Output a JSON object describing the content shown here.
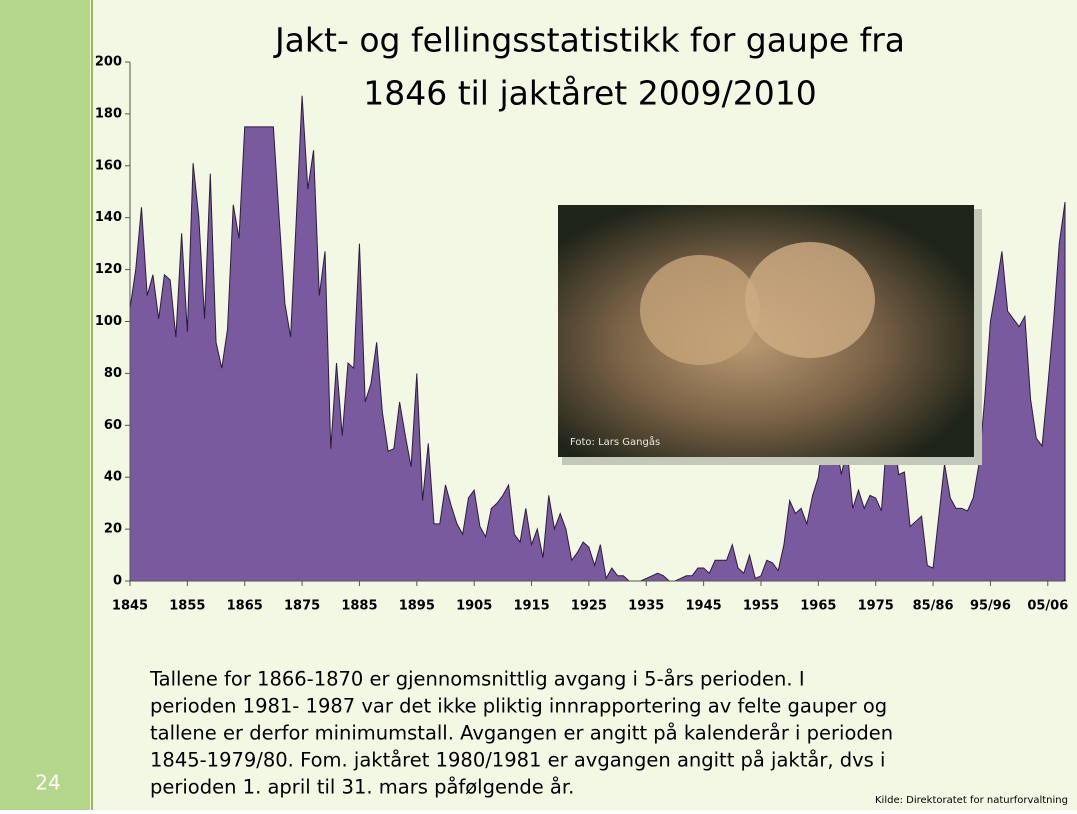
{
  "slide_number": "24",
  "chart_data": {
    "type": "area",
    "title": [
      "Jakt- og fellingsstatistikk for gaupe fra",
      "1846 til jaktåret 2009/2010"
    ],
    "x": [
      1845,
      1846,
      1847,
      1848,
      1849,
      1850,
      1851,
      1852,
      1853,
      1854,
      1855,
      1856,
      1857,
      1858,
      1859,
      1860,
      1861,
      1862,
      1863,
      1864,
      1865,
      1866,
      1867,
      1868,
      1869,
      1870,
      1871,
      1872,
      1873,
      1874,
      1875,
      1876,
      1877,
      1878,
      1879,
      1880,
      1881,
      1882,
      1883,
      1884,
      1885,
      1886,
      1887,
      1888,
      1889,
      1890,
      1891,
      1892,
      1893,
      1894,
      1895,
      1896,
      1897,
      1898,
      1899,
      1900,
      1901,
      1902,
      1903,
      1904,
      1905,
      1906,
      1907,
      1908,
      1909,
      1910,
      1911,
      1912,
      1913,
      1914,
      1915,
      1916,
      1917,
      1918,
      1919,
      1920,
      1921,
      1922,
      1923,
      1924,
      1925,
      1926,
      1927,
      1928,
      1929,
      1930,
      1931,
      1932,
      1933,
      1934,
      1935,
      1936,
      1937,
      1938,
      1939,
      1940,
      1941,
      1942,
      1943,
      1944,
      1945,
      1946,
      1947,
      1948,
      1949,
      1950,
      1951,
      1952,
      1953,
      1954,
      1955,
      1956,
      1957,
      1958,
      1959,
      1960,
      1961,
      1962,
      1963,
      1964,
      1965,
      1966,
      1967,
      1968,
      1969,
      1970,
      1971,
      1972,
      1973,
      1974,
      1975,
      1976,
      1977,
      1978,
      1979,
      1980,
      1981,
      1982,
      1983,
      1984,
      1985,
      1986,
      1987,
      1988,
      1989,
      1990,
      1991,
      1992,
      1993,
      1994,
      1995,
      1996,
      1997,
      1998,
      1999,
      2000,
      2001,
      2002,
      2003,
      2004,
      2005,
      2006,
      2007,
      2008
    ],
    "values": [
      105,
      120,
      144,
      110,
      118,
      101,
      118,
      116,
      94,
      134,
      96,
      161,
      140,
      101,
      157,
      92,
      82,
      97,
      145,
      132,
      175,
      175,
      175,
      175,
      175,
      175,
      140,
      107,
      94,
      140,
      187,
      151,
      166,
      110,
      127,
      51,
      84,
      56,
      84,
      82,
      130,
      69,
      76,
      92,
      65,
      50,
      51,
      69,
      56,
      44,
      80,
      31,
      53,
      22,
      22,
      37,
      29,
      22,
      18,
      32,
      35,
      21,
      17,
      28,
      30,
      33,
      37,
      18,
      15,
      28,
      14,
      20,
      9,
      33,
      20,
      26,
      20,
      8,
      11,
      15,
      13,
      6,
      14,
      1,
      5,
      2,
      2,
      0,
      0,
      0,
      1,
      2,
      3,
      2,
      0,
      0,
      1,
      2,
      2,
      5,
      5,
      3,
      8,
      8,
      8,
      14,
      5,
      3,
      10,
      1,
      2,
      8,
      7,
      4,
      14,
      31,
      26,
      28,
      22,
      33,
      40,
      58,
      61,
      55,
      41,
      51,
      28,
      35,
      28,
      33,
      32,
      27,
      57,
      61,
      41,
      42,
      21,
      23,
      25,
      6,
      5,
      25,
      45,
      32,
      28,
      28,
      27,
      32,
      45,
      70,
      100,
      113,
      127,
      104,
      101,
      98,
      102,
      70,
      55,
      52,
      75,
      100,
      130,
      146
    ],
    "color": "#7a5a9e",
    "xlim": [
      1845,
      2008
    ],
    "xticks": [
      1845,
      1855,
      1865,
      1875,
      1885,
      1895,
      1905,
      1915,
      1925,
      1935,
      1945,
      1955,
      1965,
      1975,
      {
        "value": 1985,
        "label": "85/86"
      },
      {
        "value": 1995,
        "label": "95/96"
      },
      {
        "value": 2005,
        "label": "05/06"
      }
    ],
    "ylim": [
      0,
      200
    ],
    "yticks": [
      0,
      20,
      40,
      60,
      80,
      100,
      120,
      140,
      160,
      180,
      200
    ],
    "photo_credit": "Foto: Lars Gangås"
  },
  "note_lines": [
    "Tallene for  1866-1870 er gjennomsnittlig avgang i 5-års perioden.  I",
    "perioden 1981- 1987 var det ikke pliktig innrapportering av felte gauper og",
    "tallene er derfor minimumstall. Avgangen er angitt på kalenderår i perioden",
    "1845-1979/80. Fom. jaktåret 1980/1981 er avgangen angitt på jaktår, dvs i",
    "perioden 1. april til 31. mars påfølgende år."
  ],
  "source": "Kilde: Direktoratet for naturforvaltning"
}
